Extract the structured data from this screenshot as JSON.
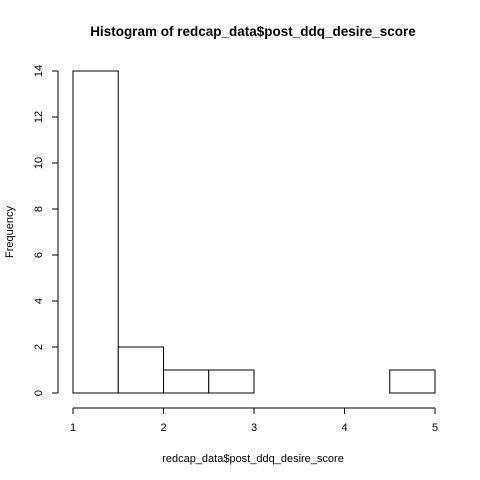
{
  "chart_data": {
    "type": "bar",
    "title": "Histogram of redcap_data$post_ddq_desire_score",
    "xlabel": "redcap_data$post_ddq_desire_score",
    "ylabel": "Frequency",
    "bins": [
      {
        "x0": 1.0,
        "x1": 1.5,
        "count": 14
      },
      {
        "x0": 1.5,
        "x1": 2.0,
        "count": 2
      },
      {
        "x0": 2.0,
        "x1": 2.5,
        "count": 1
      },
      {
        "x0": 2.5,
        "x1": 3.0,
        "count": 1
      },
      {
        "x0": 3.0,
        "x1": 3.5,
        "count": 0
      },
      {
        "x0": 3.5,
        "x1": 4.0,
        "count": 0
      },
      {
        "x0": 4.0,
        "x1": 4.5,
        "count": 0
      },
      {
        "x0": 4.5,
        "x1": 5.0,
        "count": 1
      }
    ],
    "xlim": [
      1,
      5
    ],
    "ylim": [
      0,
      14
    ],
    "xticks": [
      1,
      2,
      3,
      4,
      5
    ],
    "yticks": [
      0,
      2,
      4,
      6,
      8,
      10,
      12,
      14
    ],
    "grid": false,
    "legend": "none"
  }
}
